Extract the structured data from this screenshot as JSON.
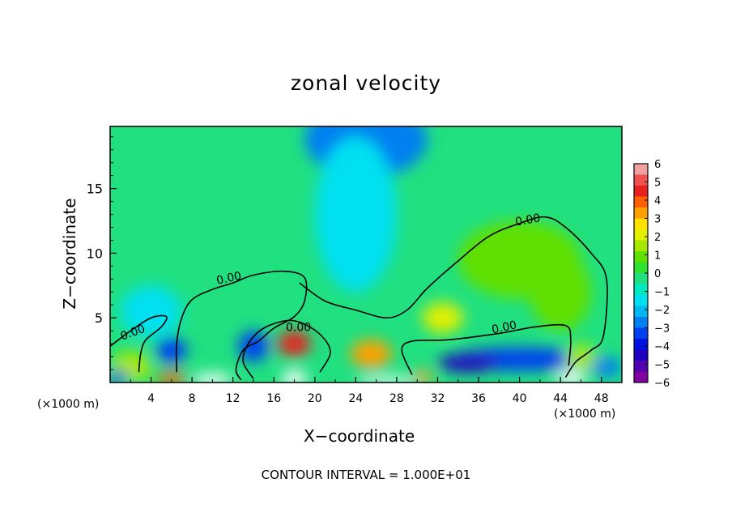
{
  "chart_data": {
    "type": "heatmap",
    "title": "zonal velocity",
    "xlabel": "X−coordinate",
    "ylabel": "Z−coordinate",
    "x_unit_left": "(×1000 m)",
    "x_unit_right": "(×1000 m)",
    "footnote": "CONTOUR INTERVAL = 1.000E+01",
    "xlim": [
      0,
      50
    ],
    "ylim": [
      0,
      19.8
    ],
    "x_ticks": [
      "4",
      "8",
      "12",
      "16",
      "20",
      "24",
      "28",
      "32",
      "36",
      "40",
      "44",
      "48"
    ],
    "y_ticks": [
      "5",
      "10",
      "15"
    ],
    "contour_label": "0.00",
    "colorbar": {
      "ticks": [
        "6",
        "5",
        "4",
        "3",
        "2",
        "1",
        "0",
        "−1",
        "−2",
        "−3",
        "−4",
        "−5",
        "−6"
      ],
      "colors": [
        "#f0a0a0",
        "#f05050",
        "#e82020",
        "#ff6000",
        "#ffa000",
        "#ffe000",
        "#e0f000",
        "#a8e800",
        "#60e000",
        "#30e030",
        "#20e080",
        "#00e8c0",
        "#00e0f0",
        "#00b8f0",
        "#0080f0",
        "#0040f0",
        "#0010e0",
        "#2000c0",
        "#5000b0",
        "#8000a0"
      ]
    },
    "background_value": -0.5,
    "features": [
      {
        "x": 25,
        "z": 18.8,
        "rx": 6,
        "rz": 3,
        "value": -2.6
      },
      {
        "x": 24,
        "z": 13,
        "rx": 4,
        "rz": 6,
        "value": -1.4
      },
      {
        "x": 4,
        "z": 5.5,
        "rx": 3,
        "rz": 2,
        "value": -1.3
      },
      {
        "x": 40,
        "z": 9.5,
        "rx": 6,
        "rz": 3,
        "value": 0.9
      },
      {
        "x": 44,
        "z": 7,
        "rx": 3,
        "rz": 3,
        "value": 0.7
      },
      {
        "x": 32.5,
        "z": 5,
        "rx": 2,
        "rz": 1.2,
        "value": 2.2
      },
      {
        "x": 40,
        "z": 1.8,
        "rx": 7,
        "rz": 0.9,
        "value": -3.6
      },
      {
        "x": 35,
        "z": 1.5,
        "rx": 3,
        "rz": 0.7,
        "value": -4.5
      },
      {
        "x": 18,
        "z": 3,
        "rx": 1.6,
        "rz": 1,
        "value": 4.5
      },
      {
        "x": 25.5,
        "z": 2.2,
        "rx": 2,
        "rz": 1.1,
        "value": 3.2
      },
      {
        "x": 6,
        "z": 2.5,
        "rx": 1.5,
        "rz": 1,
        "value": -3.2
      },
      {
        "x": 14,
        "z": 2.8,
        "rx": 1.5,
        "rz": 1.2,
        "value": -3.0
      },
      {
        "x": 2,
        "z": 1.2,
        "rx": 2,
        "rz": 1.2,
        "value": 1.4
      },
      {
        "x": 46,
        "z": 2,
        "rx": 1.5,
        "rz": 1,
        "value": 1.6
      },
      {
        "x": 6,
        "z": 0.3,
        "rx": 1.5,
        "rz": 0.5,
        "value": 4
      },
      {
        "x": 30.5,
        "z": 0.4,
        "rx": 1,
        "rz": 0.5,
        "value": 3.5
      },
      {
        "x": 0.8,
        "z": 0.4,
        "rx": 1,
        "rz": 0.5,
        "value": -4
      },
      {
        "x": 48.5,
        "z": 1.2,
        "rx": 1.5,
        "rz": 0.8,
        "value": -2.8
      }
    ],
    "white_patches": [
      {
        "x": 10,
        "z": 0.2,
        "rx": 2,
        "rz": 0.5
      },
      {
        "x": 18,
        "z": 0.3,
        "rx": 1.2,
        "rz": 0.7
      },
      {
        "x": 45,
        "z": 0.3,
        "rx": 1.5,
        "rz": 0.6
      },
      {
        "x": 27,
        "z": 0.1,
        "rx": 3,
        "rz": 0.35
      }
    ],
    "contour_lines": [
      [
        [
          0,
          2.8
        ],
        [
          2,
          4
        ],
        [
          4,
          5
        ],
        [
          5.5,
          5.1
        ],
        [
          5,
          4.3
        ],
        [
          3.5,
          3.3
        ],
        [
          3,
          2.3
        ],
        [
          2.8,
          0.8
        ]
      ],
      [
        [
          6.5,
          0.8
        ],
        [
          6.5,
          3
        ],
        [
          7,
          5
        ],
        [
          8,
          6.4
        ],
        [
          10,
          7.2
        ],
        [
          12,
          7.7
        ],
        [
          14,
          8.3
        ],
        [
          17,
          8.6
        ],
        [
          19,
          8.1
        ],
        [
          19,
          6.3
        ],
        [
          18,
          5.1
        ],
        [
          16,
          4.2
        ],
        [
          14.5,
          3.2
        ],
        [
          13,
          2.5
        ],
        [
          12.3,
          1
        ],
        [
          12.8,
          0.2
        ]
      ],
      [
        [
          18.5,
          7.7
        ],
        [
          21,
          6.3
        ],
        [
          24,
          5.6
        ],
        [
          27,
          5
        ],
        [
          29,
          5.6
        ],
        [
          31,
          7.3
        ],
        [
          34,
          9.4
        ],
        [
          37,
          11.3
        ],
        [
          40,
          12.3
        ],
        [
          42.5,
          12.8
        ],
        [
          44.5,
          12
        ],
        [
          47,
          10
        ],
        [
          48.5,
          8
        ],
        [
          48.2,
          3.6
        ],
        [
          47,
          2.5
        ],
        [
          45.5,
          1.6
        ],
        [
          44.5,
          0.4
        ]
      ],
      [
        [
          14,
          0.3
        ],
        [
          13,
          1.6
        ],
        [
          13.5,
          3
        ],
        [
          15,
          4.2
        ],
        [
          17.5,
          4.8
        ],
        [
          19.5,
          4.3
        ],
        [
          21,
          3.3
        ],
        [
          21.5,
          2.2
        ],
        [
          20.5,
          0.8
        ]
      ],
      [
        [
          29.5,
          0.6
        ],
        [
          28.5,
          2.5
        ],
        [
          29.5,
          3.2
        ],
        [
          33,
          3.3
        ],
        [
          38,
          3.8
        ],
        [
          41.5,
          4.3
        ],
        [
          44.5,
          4.4
        ],
        [
          45,
          3.3
        ],
        [
          44.8,
          1.3
        ]
      ]
    ]
  }
}
